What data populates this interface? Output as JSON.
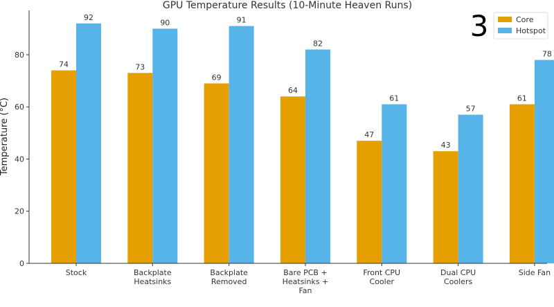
{
  "chart_data": {
    "type": "bar",
    "title": "GPU Temperature Results (10-Minute Heaven Runs)",
    "xlabel": "",
    "ylabel": "Temperature (°C)",
    "ylim": [
      0,
      97
    ],
    "yticks": [
      0,
      20,
      40,
      60,
      80
    ],
    "grid": false,
    "legend": "top-right",
    "annotation": "3",
    "categories": [
      "Stock",
      "Backplate Heatsinks",
      "Backplate Removed",
      "Bare PCB + Heatsinks + Fan",
      "Front CPU Cooler",
      "Dual CPU Coolers",
      "Side Fan"
    ],
    "series": [
      {
        "name": "Core",
        "color": "#E69F00",
        "values": [
          74,
          73,
          69,
          64,
          47,
          43,
          61
        ]
      },
      {
        "name": "Hotspot",
        "color": "#56B4E9",
        "values": [
          92,
          90,
          91,
          82,
          61,
          57,
          78
        ]
      }
    ]
  }
}
